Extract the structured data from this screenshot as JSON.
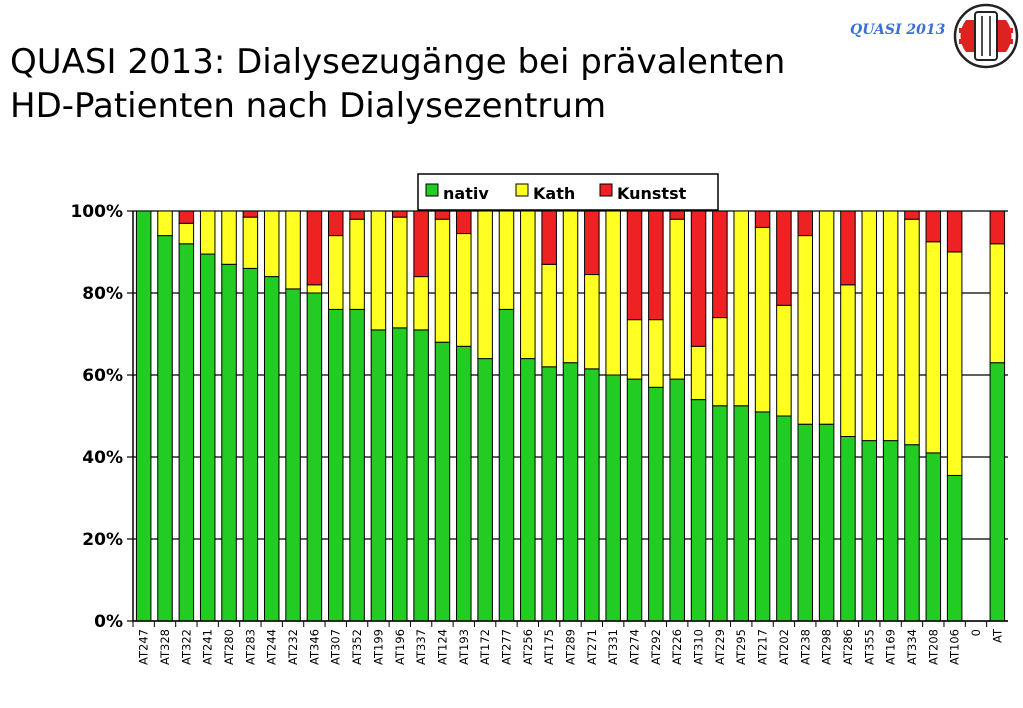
{
  "header": {
    "title_line1": "QUASI 2013: Dialysezugänge bei prävalenten",
    "title_line2": "HD-Patienten nach Dialysezentrum",
    "brand": "QUASI 2013"
  },
  "colors": {
    "nativ": "#22cc22",
    "Kath": "#ffff22",
    "Kunstst": "#ee2222"
  },
  "chart_data": {
    "type": "bar",
    "stacked": true,
    "categories": [
      "AT247",
      "AT328",
      "AT322",
      "AT241",
      "AT280",
      "AT283",
      "AT244",
      "AT232",
      "AT346",
      "AT307",
      "AT352",
      "AT199",
      "AT196",
      "AT337",
      "AT124",
      "AT193",
      "AT172",
      "AT277",
      "AT256",
      "AT175",
      "AT289",
      "AT271",
      "AT331",
      "AT274",
      "AT292",
      "AT226",
      "AT310",
      "AT229",
      "AT295",
      "AT217",
      "AT202",
      "AT238",
      "AT298",
      "AT286",
      "AT355",
      "AT169",
      "AT334",
      "AT208",
      "AT106",
      "0",
      "AT"
    ],
    "series": [
      {
        "name": "nativ",
        "values": [
          100,
          94,
          92,
          89.5,
          87,
          86,
          84,
          81,
          80,
          76,
          76,
          71,
          71.5,
          71,
          68,
          67,
          64,
          76,
          64,
          62,
          63,
          61.5,
          60,
          59,
          57,
          59,
          54,
          52.5,
          52.5,
          51,
          50,
          48,
          48,
          45,
          44,
          44,
          43,
          41,
          35.5,
          0,
          63
        ]
      },
      {
        "name": "Kath",
        "values": [
          0,
          6,
          5,
          10.5,
          13,
          12.5,
          16,
          19,
          2,
          18,
          22,
          29,
          27,
          13,
          30,
          27.5,
          36,
          24,
          36,
          25,
          37,
          23,
          40,
          14.5,
          16.5,
          39,
          13,
          21.5,
          47.5,
          45,
          27,
          46,
          52,
          37,
          56,
          56,
          55,
          51.5,
          54.5,
          0,
          29
        ]
      },
      {
        "name": "Kunstst",
        "values": [
          0,
          0,
          3,
          0,
          0,
          1.5,
          0,
          0,
          18,
          6,
          2,
          0,
          1.5,
          16,
          2,
          5.5,
          0,
          0,
          0,
          13,
          0,
          15.5,
          0,
          26.5,
          26.5,
          2,
          33,
          26,
          0,
          4,
          23,
          6,
          0,
          18,
          0,
          0,
          2,
          7.5,
          10,
          0,
          8
        ]
      }
    ],
    "yticks": [
      "0%",
      "20%",
      "40%",
      "60%",
      "80%",
      "100%"
    ],
    "ylim": [
      0,
      100
    ],
    "legend_position": "top-center",
    "grid": true
  }
}
